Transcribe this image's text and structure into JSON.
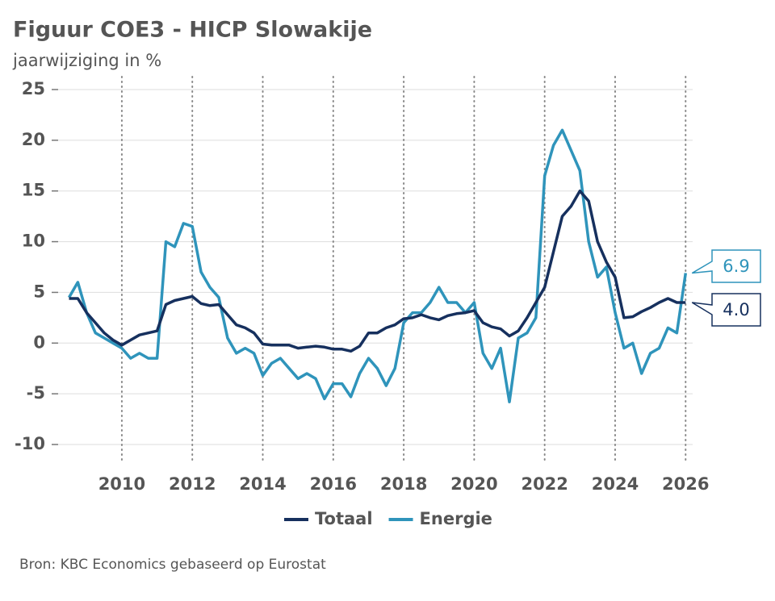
{
  "chart_data": {
    "type": "line",
    "title": "Figuur COE3 - HICP Slowakije",
    "subtitle": "jaarwijziging in %",
    "source": "Bron: KBC Economics gebaseerd op Eurostat",
    "x": [
      2008.5,
      2008.75,
      2009,
      2009.25,
      2009.5,
      2009.75,
      2010,
      2010.25,
      2010.5,
      2010.75,
      2011,
      2011.25,
      2011.5,
      2011.75,
      2012,
      2012.25,
      2012.5,
      2012.75,
      2013,
      2013.25,
      2013.5,
      2013.75,
      2014,
      2014.25,
      2014.5,
      2014.75,
      2015,
      2015.25,
      2015.5,
      2015.75,
      2016,
      2016.25,
      2016.5,
      2016.75,
      2017,
      2017.25,
      2017.5,
      2017.75,
      2018,
      2018.25,
      2018.5,
      2018.75,
      2019,
      2019.25,
      2019.5,
      2019.75,
      2020,
      2020.25,
      2020.5,
      2020.75,
      2021,
      2021.25,
      2021.5,
      2021.75,
      2022,
      2022.25,
      2022.5,
      2022.75,
      2023,
      2023.25,
      2023.5,
      2023.75,
      2024,
      2024.25,
      2024.5,
      2024.75,
      2025,
      2025.25,
      2025.5,
      2025.75,
      2026
    ],
    "series": [
      {
        "name": "Totaal",
        "color": "#16305e",
        "end_label": "4.0",
        "values": [
          4.4,
          4.4,
          3.0,
          2.0,
          1.0,
          0.3,
          -0.2,
          0.3,
          0.8,
          1.0,
          1.2,
          3.8,
          4.2,
          4.4,
          4.6,
          3.9,
          3.7,
          3.8,
          2.8,
          1.8,
          1.5,
          1.0,
          -0.1,
          -0.2,
          -0.2,
          -0.2,
          -0.5,
          -0.4,
          -0.3,
          -0.4,
          -0.6,
          -0.6,
          -0.8,
          -0.3,
          1.0,
          1.0,
          1.5,
          1.8,
          2.4,
          2.5,
          2.8,
          2.5,
          2.3,
          2.7,
          2.9,
          3.0,
          3.2,
          2.0,
          1.6,
          1.4,
          0.7,
          1.2,
          2.5,
          4.0,
          5.5,
          9.0,
          12.5,
          13.5,
          15.0,
          14.0,
          10.0,
          8.0,
          6.5,
          2.5,
          2.6,
          3.1,
          3.5,
          4.0,
          4.4,
          4.0,
          4.0
        ]
      },
      {
        "name": "Energie",
        "color": "#2f94bb",
        "end_label": "6.9",
        "values": [
          4.5,
          6.0,
          3.0,
          1.0,
          0.5,
          0.0,
          -0.5,
          -1.5,
          -1.0,
          -1.5,
          -1.5,
          10.0,
          9.5,
          11.8,
          11.5,
          7.0,
          5.5,
          4.5,
          0.5,
          -1.0,
          -0.5,
          -1.0,
          -3.2,
          -2.0,
          -1.5,
          -2.5,
          -3.5,
          -3.0,
          -3.5,
          -5.5,
          -4.0,
          -4.0,
          -5.3,
          -3.0,
          -1.5,
          -2.5,
          -4.2,
          -2.5,
          2.0,
          3.0,
          3.0,
          4.0,
          5.5,
          4.0,
          4.0,
          3.0,
          4.0,
          -1.0,
          -2.5,
          -0.5,
          -5.8,
          0.5,
          1.0,
          2.5,
          16.5,
          19.5,
          21.0,
          19.0,
          17.0,
          10.0,
          6.5,
          7.5,
          3.0,
          -0.5,
          0.0,
          -3.0,
          -1.0,
          -0.5,
          1.5,
          1.0,
          6.9
        ]
      }
    ],
    "xlim": [
      2008.1,
      2026.2
    ],
    "xticks": [
      2010,
      2012,
      2014,
      2016,
      2018,
      2020,
      2022,
      2024,
      2026
    ],
    "ylim": [
      -10,
      25
    ],
    "yticks": [
      25,
      20,
      15,
      10,
      5,
      0,
      -5,
      -10
    ],
    "grid": true,
    "legend": "bottom"
  }
}
